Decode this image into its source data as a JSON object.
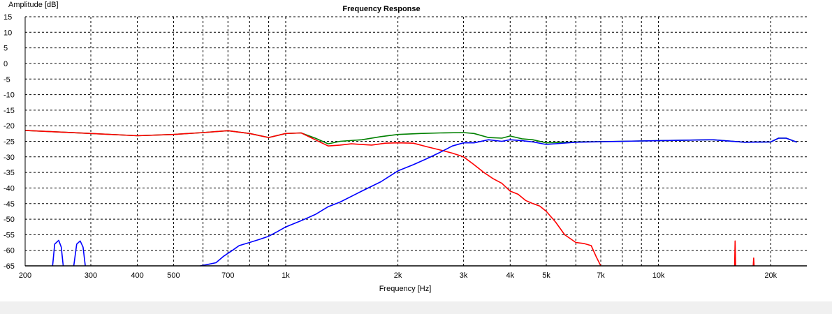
{
  "chart_data": {
    "type": "line",
    "title": "Frequency Response",
    "xlabel": "Frequency [Hz]",
    "ylabel": "Amplitude [dB]",
    "x_scale": "log",
    "xlim": [
      200,
      25000
    ],
    "ylim": [
      -65,
      15
    ],
    "grid": true,
    "x_ticks": [
      {
        "value": 200,
        "label": "200"
      },
      {
        "value": 300,
        "label": "300"
      },
      {
        "value": 400,
        "label": "400"
      },
      {
        "value": 500,
        "label": "500"
      },
      {
        "value": 700,
        "label": "700"
      },
      {
        "value": 1000,
        "label": "1k"
      },
      {
        "value": 2000,
        "label": "2k"
      },
      {
        "value": 3000,
        "label": "3k"
      },
      {
        "value": 4000,
        "label": "4k"
      },
      {
        "value": 5000,
        "label": "5k"
      },
      {
        "value": 7000,
        "label": "7k"
      },
      {
        "value": 10000,
        "label": "10k"
      },
      {
        "value": 20000,
        "label": "20k"
      }
    ],
    "x_gridlines": [
      200,
      300,
      400,
      500,
      600,
      700,
      800,
      900,
      1000,
      2000,
      3000,
      4000,
      5000,
      6000,
      7000,
      8000,
      9000,
      10000,
      20000
    ],
    "y_ticks": [
      15,
      10,
      5,
      0,
      -5,
      -10,
      -15,
      -20,
      -25,
      -30,
      -35,
      -40,
      -45,
      -50,
      -55,
      -60,
      -65
    ],
    "series": [
      {
        "color": "#008000",
        "points": [
          [
            200,
            -21.5
          ],
          [
            300,
            -22.5
          ],
          [
            400,
            -23.2
          ],
          [
            500,
            -22.8
          ],
          [
            600,
            -22.2
          ],
          [
            700,
            -21.6
          ],
          [
            800,
            -22.5
          ],
          [
            900,
            -23.8
          ],
          [
            1000,
            -22.5
          ],
          [
            1100,
            -22.3
          ],
          [
            1200,
            -24
          ],
          [
            1300,
            -25.8
          ],
          [
            1400,
            -25
          ],
          [
            1600,
            -24.5
          ],
          [
            1800,
            -23.5
          ],
          [
            2000,
            -22.8
          ],
          [
            2300,
            -22.5
          ],
          [
            2600,
            -22.3
          ],
          [
            3000,
            -22.2
          ],
          [
            3200,
            -22.5
          ],
          [
            3500,
            -23.8
          ],
          [
            3800,
            -24
          ],
          [
            4000,
            -23.3
          ],
          [
            4300,
            -24.2
          ],
          [
            4600,
            -24.5
          ],
          [
            5000,
            -25.5
          ],
          [
            6000,
            -25.2
          ],
          [
            8000,
            -25
          ],
          [
            10000,
            -24.8
          ],
          [
            14000,
            -24.5
          ],
          [
            17000,
            -25.3
          ],
          [
            20000,
            -25.2
          ],
          [
            21000,
            -24
          ],
          [
            22000,
            -24
          ],
          [
            23500,
            -25.3
          ]
        ]
      },
      {
        "color": "#ff0000",
        "points": [
          [
            200,
            -21.5
          ],
          [
            300,
            -22.5
          ],
          [
            400,
            -23.2
          ],
          [
            500,
            -22.8
          ],
          [
            600,
            -22.2
          ],
          [
            700,
            -21.6
          ],
          [
            800,
            -22.5
          ],
          [
            900,
            -23.8
          ],
          [
            1000,
            -22.5
          ],
          [
            1100,
            -22.3
          ],
          [
            1200,
            -24.5
          ],
          [
            1300,
            -26.5
          ],
          [
            1400,
            -26.2
          ],
          [
            1500,
            -25.8
          ],
          [
            1700,
            -26.2
          ],
          [
            1850,
            -25.6
          ],
          [
            2000,
            -25.5
          ],
          [
            2200,
            -25.6
          ],
          [
            2400,
            -26.8
          ],
          [
            2600,
            -27.8
          ],
          [
            2800,
            -28.8
          ],
          [
            3000,
            -30
          ],
          [
            3200,
            -32.5
          ],
          [
            3400,
            -35
          ],
          [
            3600,
            -37
          ],
          [
            3800,
            -38.5
          ],
          [
            4000,
            -41
          ],
          [
            4200,
            -42
          ],
          [
            4400,
            -44
          ],
          [
            4600,
            -45
          ],
          [
            4800,
            -45.8
          ],
          [
            5000,
            -47.5
          ],
          [
            5300,
            -51
          ],
          [
            5600,
            -55
          ],
          [
            6000,
            -57.5
          ],
          [
            6300,
            -57.8
          ],
          [
            6600,
            -58.5
          ],
          [
            6800,
            -62
          ],
          [
            7000,
            -65
          ]
        ]
      },
      {
        "color": "#ff0000",
        "points": [
          [
            16000,
            -65
          ],
          [
            16050,
            -57
          ],
          [
            16100,
            -65
          ]
        ]
      },
      {
        "color": "#ff0000",
        "points": [
          [
            17950,
            -65
          ],
          [
            18000,
            -62.5
          ],
          [
            18050,
            -65
          ]
        ]
      },
      {
        "color": "#0000ff",
        "points": [
          [
            237,
            -65
          ],
          [
            240,
            -58
          ],
          [
            246,
            -56.8
          ],
          [
            250,
            -59
          ],
          [
            253,
            -65
          ]
        ]
      },
      {
        "color": "#0000ff",
        "points": [
          [
            270,
            -65
          ],
          [
            275,
            -58
          ],
          [
            281,
            -57
          ],
          [
            286,
            -59
          ],
          [
            290,
            -65
          ]
        ]
      },
      {
        "color": "#0000ff",
        "points": [
          [
            590,
            -65
          ],
          [
            620,
            -64.5
          ],
          [
            650,
            -64
          ],
          [
            680,
            -62
          ],
          [
            700,
            -61
          ],
          [
            720,
            -60
          ],
          [
            750,
            -58.5
          ],
          [
            800,
            -57.5
          ],
          [
            850,
            -56.5
          ],
          [
            900,
            -55.5
          ],
          [
            950,
            -54
          ],
          [
            1000,
            -52.5
          ],
          [
            1100,
            -50.5
          ],
          [
            1200,
            -48.5
          ],
          [
            1300,
            -46
          ],
          [
            1400,
            -44.5
          ],
          [
            1600,
            -41
          ],
          [
            1800,
            -38
          ],
          [
            2000,
            -34.5
          ],
          [
            2200,
            -32.5
          ],
          [
            2400,
            -30.5
          ],
          [
            2600,
            -28.5
          ],
          [
            2800,
            -26.5
          ],
          [
            3000,
            -25.5
          ],
          [
            3200,
            -25.5
          ],
          [
            3500,
            -24.5
          ],
          [
            3800,
            -25
          ],
          [
            4000,
            -24.5
          ],
          [
            4300,
            -24.8
          ],
          [
            4600,
            -25.2
          ],
          [
            5000,
            -26
          ],
          [
            6000,
            -25.3
          ],
          [
            8000,
            -25
          ],
          [
            10000,
            -24.8
          ],
          [
            14000,
            -24.5
          ],
          [
            17000,
            -25.3
          ],
          [
            20000,
            -25.2
          ],
          [
            21000,
            -24
          ],
          [
            22000,
            -24
          ],
          [
            23500,
            -25.3
          ]
        ]
      }
    ]
  }
}
